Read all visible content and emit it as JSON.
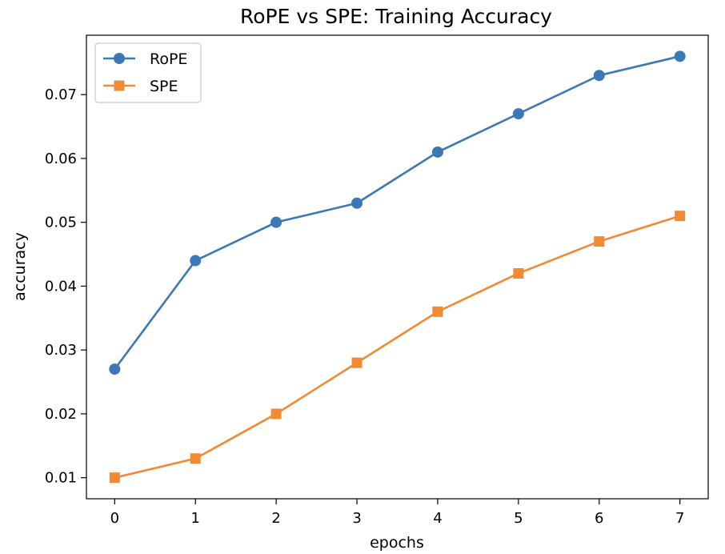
{
  "chart_data": {
    "type": "line",
    "title": "RoPE vs SPE: Training Accuracy",
    "xlabel": "epochs",
    "ylabel": "accuracy",
    "x": [
      0,
      1,
      2,
      3,
      4,
      5,
      6,
      7
    ],
    "xlim": [
      -0.35,
      7.35
    ],
    "ylim": [
      0.0067,
      0.0793
    ],
    "xticks": [
      0,
      1,
      2,
      3,
      4,
      5,
      6,
      7
    ],
    "yticks": [
      0.01,
      0.02,
      0.03,
      0.04,
      0.05,
      0.06,
      0.07
    ],
    "ytick_labels": [
      "0.01",
      "0.02",
      "0.03",
      "0.04",
      "0.05",
      "0.06",
      "0.07"
    ],
    "grid": false,
    "legend_position": "top-left",
    "series": [
      {
        "name": "RoPE",
        "values": [
          0.027,
          0.044,
          0.05,
          0.053,
          0.061,
          0.067,
          0.073,
          0.076
        ],
        "color": "#3c78b4",
        "marker": "circle"
      },
      {
        "name": "SPE",
        "values": [
          0.01,
          0.013,
          0.02,
          0.028,
          0.036,
          0.042,
          0.047,
          0.051
        ],
        "color": "#f08a34",
        "marker": "square"
      }
    ]
  }
}
